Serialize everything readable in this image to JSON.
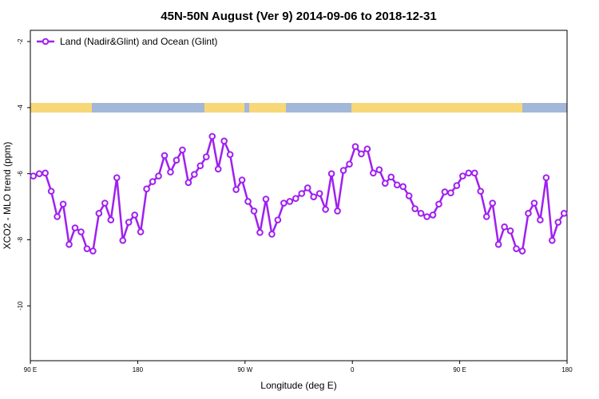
{
  "chart_data": {
    "type": "line",
    "title": "45N-50N August (Ver 9)   2014-09-06 to 2018-12-31",
    "x_label": "Longitude (deg E)",
    "y_label": "XCO2 - MLO trend (ppm)",
    "xlim": [
      90,
      540
    ],
    "ylim": [
      -11.66,
      -1.66
    ],
    "xticks": [
      {
        "value": 90,
        "label": "90 E"
      },
      180,
      {
        "value": 270,
        "label": "90 W"
      },
      {
        "value": 360,
        "label": "0"
      },
      {
        "value": 450,
        "label": "90 E"
      },
      {
        "value": 540,
        "label": "180"
      }
    ],
    "yticks": [
      -10,
      -8,
      -6,
      -4,
      -2
    ],
    "legend": "top-left",
    "series": [
      {
        "name": "Land (Nadir&Glint) and Ocean (Glint)",
        "color": "#a020f0",
        "x": [
          92.5,
          97.5,
          102.5,
          107.5,
          112.5,
          117.5,
          122.5,
          127.5,
          132.5,
          137.5,
          142.5,
          147.5,
          152.5,
          157.5,
          162.5,
          167.5,
          172.5,
          177.5,
          182.5,
          187.5,
          192.5,
          197.5,
          202.5,
          207.5,
          212.5,
          217.5,
          222.5,
          227.5,
          232.5,
          237.5,
          242.5,
          247.5,
          252.5,
          257.5,
          262.5,
          267.5,
          272.5,
          277.5,
          282.5,
          287.5,
          292.5,
          297.5,
          302.5,
          307.5,
          312.5,
          317.5,
          322.5,
          327.5,
          332.5,
          337.5,
          342.5,
          347.5,
          352.5,
          357.5,
          362.5,
          367.5,
          372.5,
          377.5,
          382.5,
          387.5,
          392.5,
          397.5,
          402.5,
          407.5,
          412.5,
          417.5,
          422.5,
          427.5,
          432.5,
          437.5,
          442.5,
          447.5,
          452.5,
          457.5,
          462.5,
          467.5,
          472.5,
          477.5,
          482.5,
          487.5,
          492.5,
          497.5,
          502.5,
          507.5,
          512.5,
          517.5,
          522.5,
          527.5,
          532.5,
          537.5
        ],
        "values": [
          -6.07,
          -6.0,
          -5.98,
          -6.53,
          -7.3,
          -6.92,
          -8.14,
          -7.64,
          -7.76,
          -8.27,
          -8.34,
          -7.2,
          -6.89,
          -7.4,
          -6.12,
          -8.02,
          -7.47,
          -7.25,
          -7.76,
          -6.46,
          -6.24,
          -6.07,
          -5.45,
          -5.95,
          -5.59,
          -5.28,
          -6.27,
          -6.02,
          -5.76,
          -5.49,
          -4.87,
          -5.86,
          -5.01,
          -5.42,
          -6.48,
          -6.19,
          -6.84,
          -7.13,
          -7.78,
          -6.77,
          -7.83,
          -7.4,
          -6.89,
          -6.84,
          -6.75,
          -6.6,
          -6.43,
          -6.7,
          -6.6,
          -7.08,
          -6.0,
          -7.13,
          -5.9,
          -5.71,
          -5.18,
          -5.4,
          -5.25,
          -5.98,
          -5.88,
          -6.29,
          -6.1,
          -6.34,
          -6.39,
          -6.67,
          -7.06,
          -7.2,
          -7.3,
          -7.25,
          -6.92,
          -6.55,
          -6.58,
          -6.36,
          -6.07,
          -5.98,
          -5.98,
          -6.53,
          -7.3,
          -6.89,
          -8.14,
          -7.61,
          -7.73,
          -8.27,
          -8.34,
          -7.2,
          -6.89,
          -7.4,
          -6.12,
          -8.02,
          -7.47,
          -7.2
        ]
      }
    ]
  }
}
